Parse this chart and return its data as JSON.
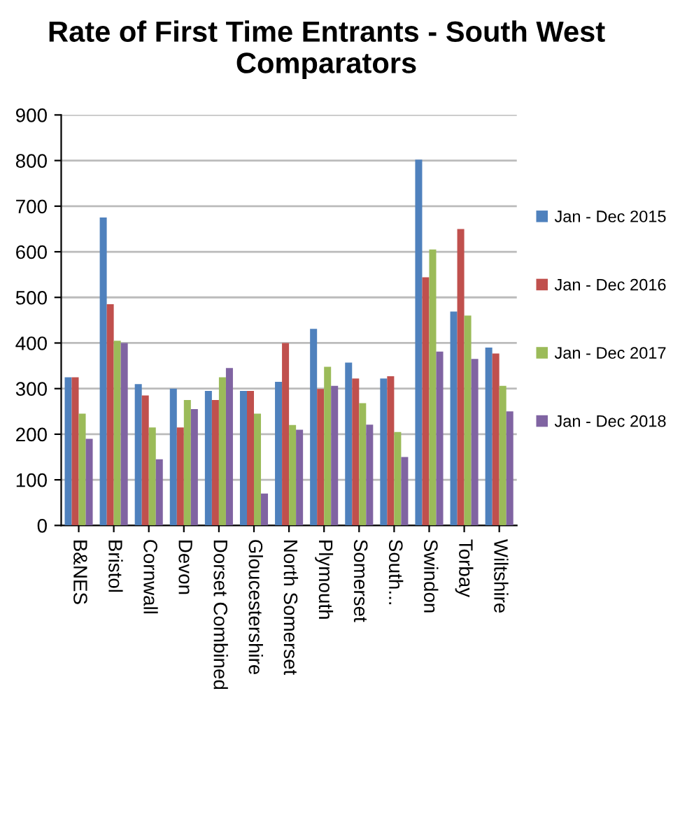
{
  "chart_data": {
    "type": "bar",
    "title": "Rate of First Time Entrants - South West Comparators",
    "categories": [
      "B&NES",
      "Bristol",
      "Cornwall",
      "Devon",
      "Dorset Combined",
      "Gloucestershire",
      "North Somerset",
      "Plymouth",
      "Somerset",
      "South...",
      "Swindon",
      "Torbay",
      "Wiltshire"
    ],
    "series": [
      {
        "name": "Jan - Dec 2015",
        "color": "#4f81bd",
        "values": [
          325,
          675,
          310,
          300,
          295,
          295,
          315,
          431,
          357,
          322,
          802,
          469,
          390
        ]
      },
      {
        "name": "Jan - Dec 2016",
        "color": "#c0504d",
        "values": [
          325,
          485,
          285,
          215,
          275,
          295,
          400,
          299,
          322,
          327,
          544,
          650,
          377
        ]
      },
      {
        "name": "Jan - Dec 2017",
        "color": "#9bbb59",
        "values": [
          245,
          405,
          215,
          275,
          325,
          245,
          220,
          348,
          268,
          205,
          605,
          460,
          306
        ]
      },
      {
        "name": "Jan - Dec 2018",
        "color": "#8064a2",
        "values": [
          190,
          400,
          145,
          255,
          345,
          70,
          210,
          306,
          221,
          150,
          381,
          365,
          250
        ]
      }
    ],
    "ylim": [
      0,
      900
    ],
    "yticks": [
      0,
      100,
      200,
      300,
      400,
      500,
      600,
      700,
      800,
      900
    ],
    "grid": "y",
    "legend": "right"
  }
}
